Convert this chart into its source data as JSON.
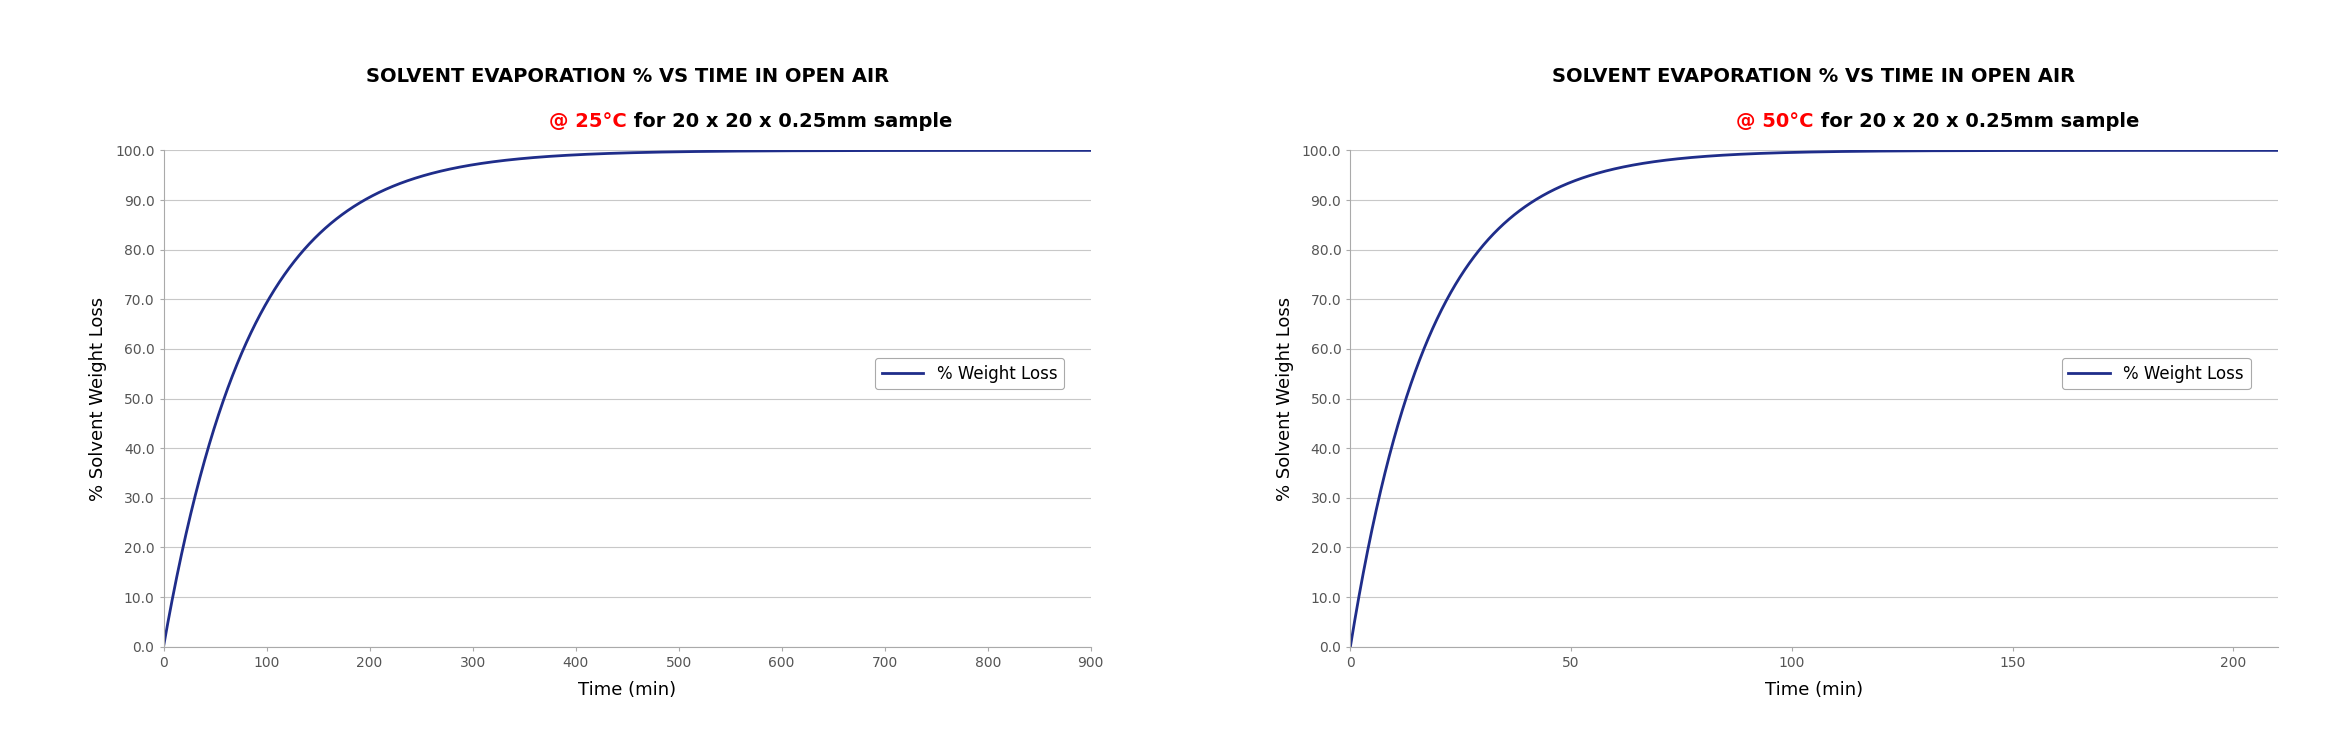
{
  "chart1": {
    "title_line1": "SOLVENT EVAPORATION % VS TIME IN OPEN AIR",
    "title_line2_red": "@ 25°C",
    "title_line2_black": " for 20 x 20 x 0.25mm sample",
    "xlabel": "Time (min)",
    "ylabel": "% Solvent Weight Loss",
    "legend_label": "% Weight Loss",
    "xmax": 900,
    "xticks": [
      0,
      100,
      200,
      300,
      400,
      500,
      600,
      700,
      800,
      900
    ],
    "yticks": [
      0.0,
      10.0,
      20.0,
      30.0,
      40.0,
      50.0,
      60.0,
      70.0,
      80.0,
      90.0,
      100.0
    ],
    "ylim": [
      0,
      100.0
    ],
    "curve_color": "#1f2d8a",
    "k": 0.0118
  },
  "chart2": {
    "title_line1": "SOLVENT EVAPORATION % VS TIME IN OPEN AIR",
    "title_line2_red": "@ 50°C",
    "title_line2_black": " for 20 x 20 x 0.25mm sample",
    "xlabel": "Time (min)",
    "ylabel": "% Solvent Weight Loss",
    "legend_label": "% Weight Loss",
    "xmax": 210,
    "xticks": [
      0,
      50,
      100,
      150,
      200
    ],
    "yticks": [
      0.0,
      10.0,
      20.0,
      30.0,
      40.0,
      50.0,
      60.0,
      70.0,
      80.0,
      90.0,
      100.0
    ],
    "ylim": [
      0,
      100.0
    ],
    "curve_color": "#1f2d8a",
    "k": 0.055
  },
  "bg_color": "#ffffff",
  "grid_color": "#c8c8c8",
  "title_fontsize": 14,
  "subtitle_fontsize": 14,
  "axis_label_fontsize": 13,
  "tick_fontsize": 10,
  "tick_color": "#555555",
  "legend_fontsize": 12,
  "line_width": 2.0
}
